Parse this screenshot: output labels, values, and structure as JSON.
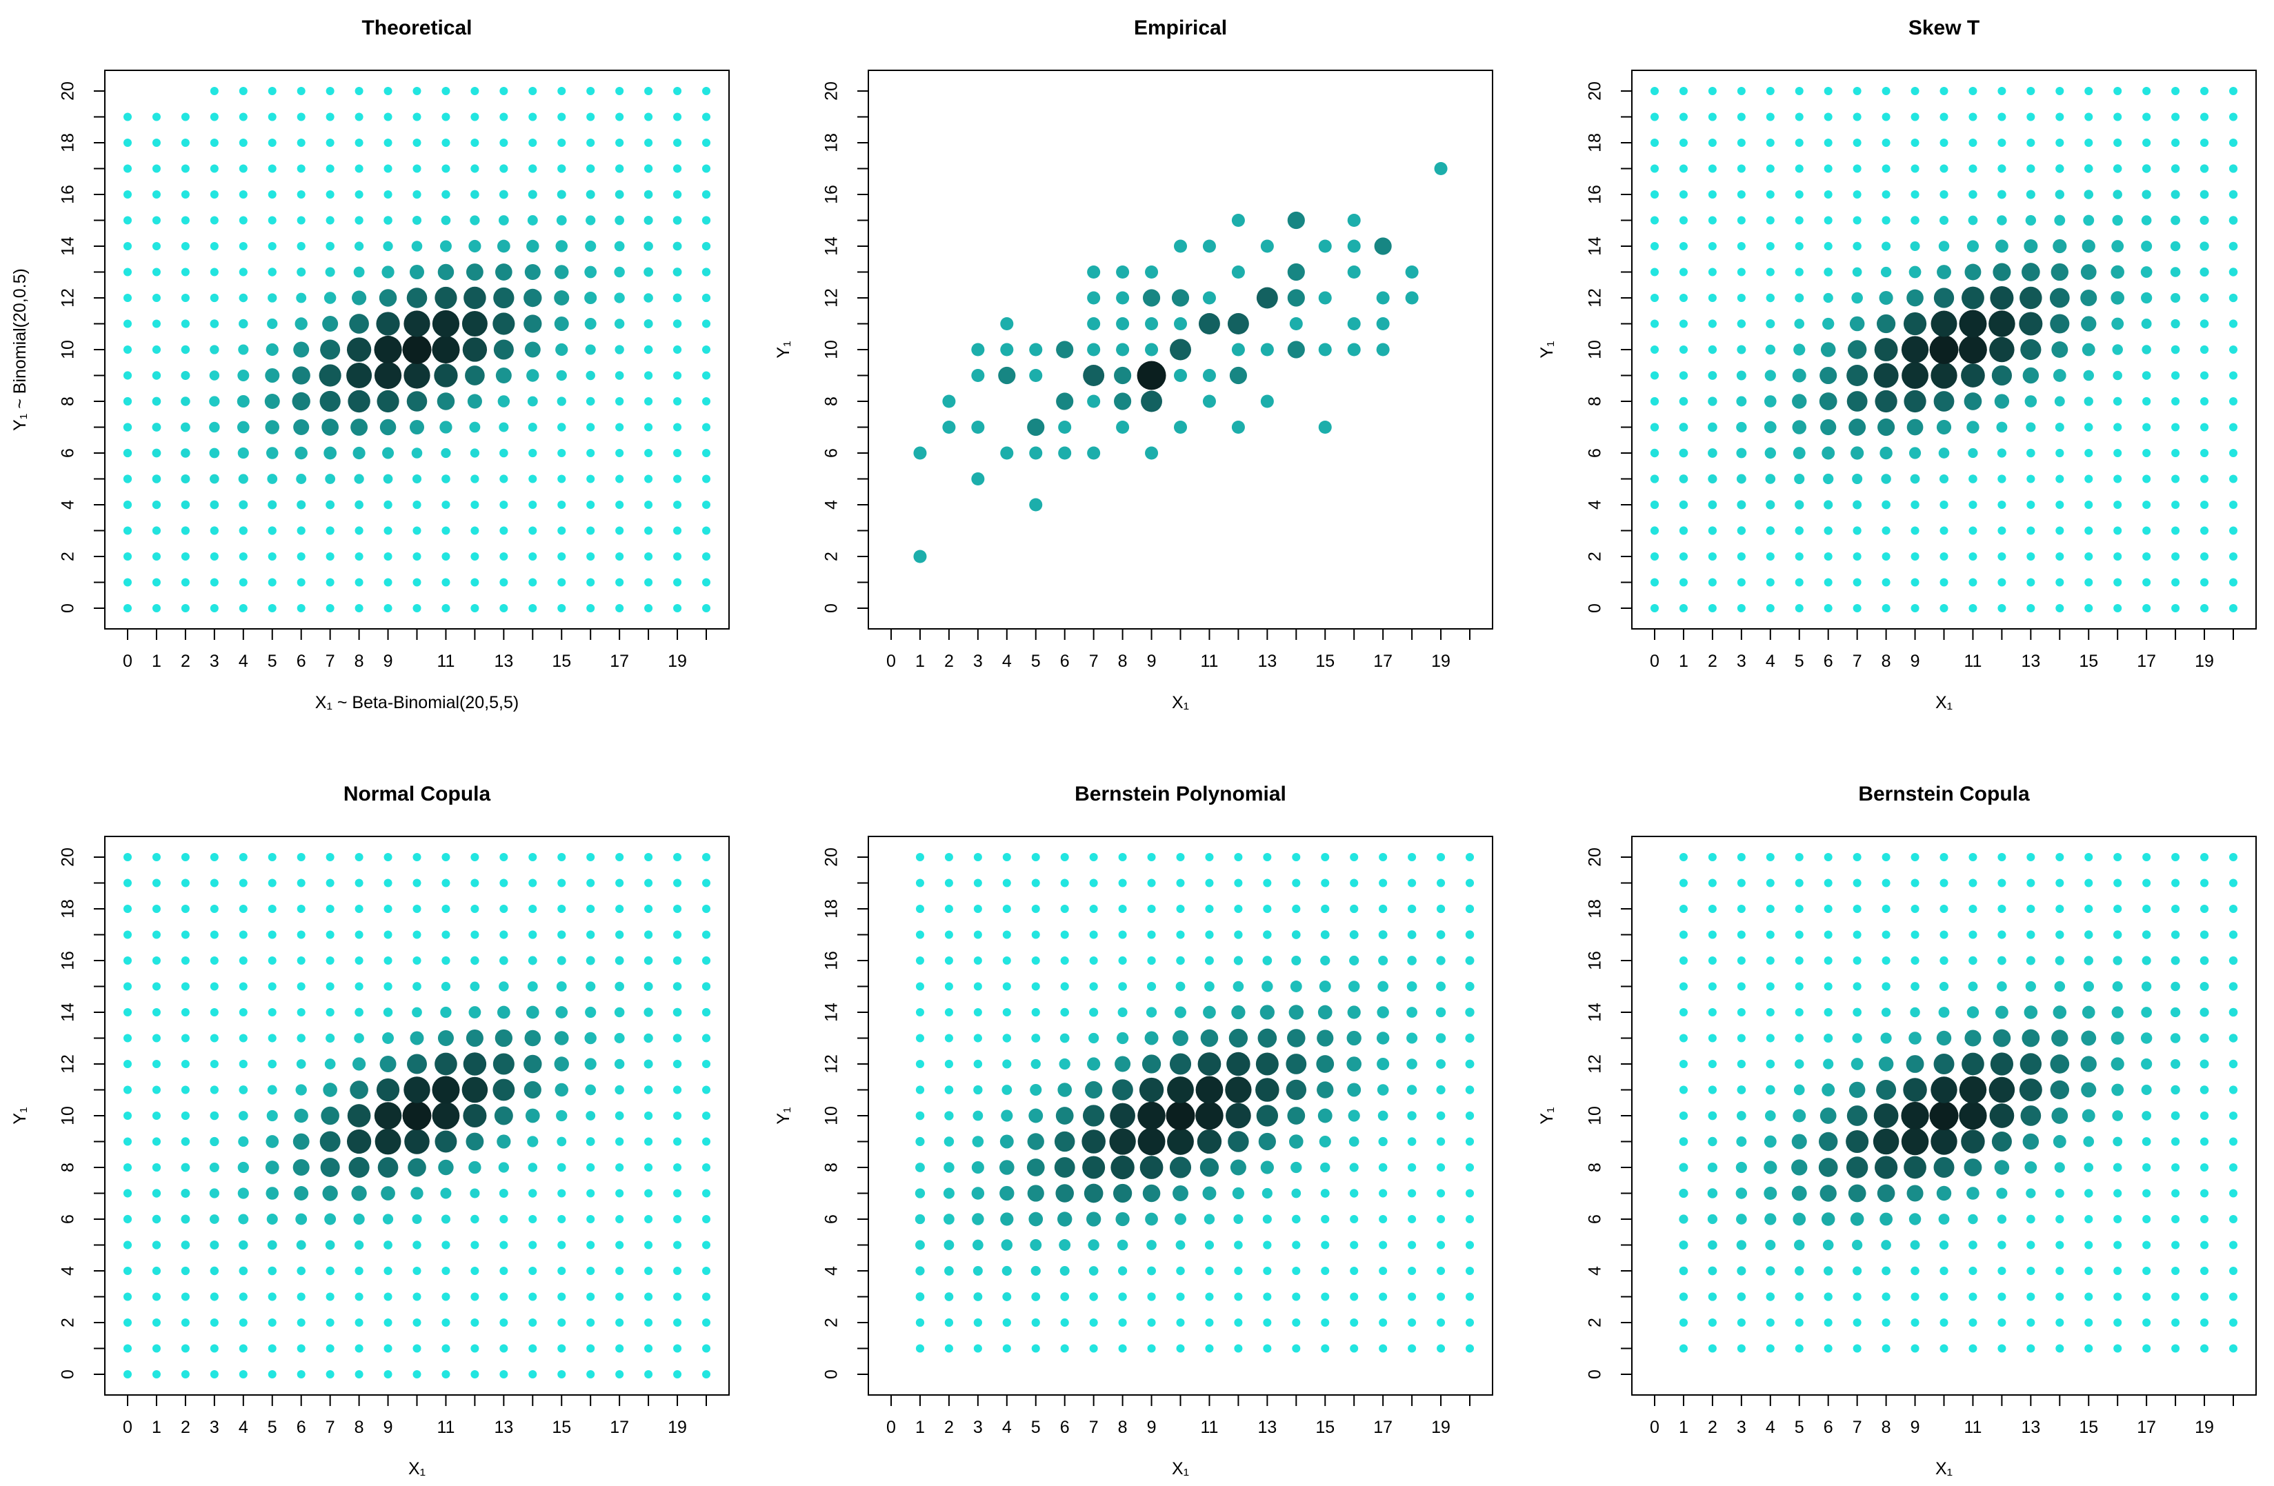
{
  "figure_title": "Six bivariate distribution panels",
  "colors": {
    "low": "#22e5e0",
    "high": "#0b1f1f"
  },
  "chart_data": [
    {
      "type": "scatter",
      "title": "Theoretical",
      "xlabel": "X₁ ~ Beta-Binomial(20,5,5)",
      "ylabel": "Y₁ ~ Binomial(20,0.5)",
      "xlim": [
        0,
        20
      ],
      "ylim": [
        0,
        20
      ],
      "xticks": [
        0,
        1,
        2,
        3,
        4,
        5,
        6,
        7,
        8,
        9,
        11,
        13,
        15,
        17,
        19
      ],
      "yticks": [
        0,
        2,
        4,
        6,
        8,
        10,
        12,
        14,
        16,
        18,
        20
      ],
      "model": {
        "kind": "gaussian",
        "mx": 10,
        "my": 10,
        "sx": 3.2,
        "sy": 2.2,
        "rho": 0.55,
        "slice": true
      }
    },
    {
      "type": "scatter",
      "title": "Empirical",
      "xlabel": "X₁",
      "ylabel": "Y₁",
      "xlim": [
        0,
        20
      ],
      "ylim": [
        0,
        20
      ],
      "xticks": [
        0,
        1,
        2,
        3,
        4,
        5,
        6,
        7,
        8,
        9,
        11,
        13,
        15,
        17,
        19
      ],
      "yticks": [
        0,
        2,
        4,
        6,
        8,
        10,
        12,
        14,
        16,
        18,
        20
      ],
      "points": [
        [
          1,
          2,
          1
        ],
        [
          1,
          6,
          1
        ],
        [
          2,
          7,
          1
        ],
        [
          2,
          8,
          1
        ],
        [
          3,
          5,
          1
        ],
        [
          3,
          7,
          1
        ],
        [
          3,
          9,
          1
        ],
        [
          3,
          10,
          1
        ],
        [
          4,
          6,
          1
        ],
        [
          4,
          9,
          2
        ],
        [
          4,
          10,
          1
        ],
        [
          4,
          11,
          1
        ],
        [
          5,
          4,
          1
        ],
        [
          5,
          6,
          1
        ],
        [
          5,
          7,
          2
        ],
        [
          5,
          9,
          1
        ],
        [
          5,
          10,
          1
        ],
        [
          6,
          6,
          1
        ],
        [
          6,
          7,
          1
        ],
        [
          6,
          8,
          2
        ],
        [
          6,
          10,
          2
        ],
        [
          7,
          6,
          1
        ],
        [
          7,
          8,
          1
        ],
        [
          7,
          9,
          3
        ],
        [
          7,
          10,
          1
        ],
        [
          7,
          11,
          1
        ],
        [
          7,
          12,
          1
        ],
        [
          7,
          13,
          1
        ],
        [
          8,
          7,
          1
        ],
        [
          8,
          8,
          2
        ],
        [
          8,
          9,
          2
        ],
        [
          8,
          10,
          1
        ],
        [
          8,
          11,
          1
        ],
        [
          8,
          12,
          1
        ],
        [
          8,
          13,
          1
        ],
        [
          9,
          6,
          1
        ],
        [
          9,
          8,
          3
        ],
        [
          9,
          9,
          5
        ],
        [
          9,
          10,
          1
        ],
        [
          9,
          11,
          1
        ],
        [
          9,
          12,
          2
        ],
        [
          9,
          13,
          1
        ],
        [
          10,
          7,
          1
        ],
        [
          10,
          9,
          1
        ],
        [
          10,
          10,
          3
        ],
        [
          10,
          11,
          1
        ],
        [
          10,
          12,
          2
        ],
        [
          10,
          14,
          1
        ],
        [
          11,
          8,
          1
        ],
        [
          11,
          9,
          1
        ],
        [
          11,
          11,
          3
        ],
        [
          11,
          12,
          1
        ],
        [
          11,
          14,
          1
        ],
        [
          12,
          7,
          1
        ],
        [
          12,
          9,
          2
        ],
        [
          12,
          10,
          1
        ],
        [
          12,
          11,
          3
        ],
        [
          12,
          13,
          1
        ],
        [
          12,
          15,
          1
        ],
        [
          13,
          8,
          1
        ],
        [
          13,
          10,
          1
        ],
        [
          13,
          12,
          3
        ],
        [
          13,
          14,
          1
        ],
        [
          14,
          10,
          2
        ],
        [
          14,
          11,
          1
        ],
        [
          14,
          12,
          2
        ],
        [
          14,
          13,
          2
        ],
        [
          14,
          15,
          2
        ],
        [
          15,
          7,
          1
        ],
        [
          15,
          10,
          1
        ],
        [
          15,
          12,
          1
        ],
        [
          15,
          14,
          1
        ],
        [
          16,
          10,
          1
        ],
        [
          16,
          11,
          1
        ],
        [
          16,
          13,
          1
        ],
        [
          16,
          14,
          1
        ],
        [
          16,
          15,
          1
        ],
        [
          17,
          10,
          1
        ],
        [
          17,
          11,
          1
        ],
        [
          17,
          12,
          1
        ],
        [
          17,
          14,
          2
        ],
        [
          18,
          12,
          1
        ],
        [
          18,
          13,
          1
        ],
        [
          19,
          17,
          1
        ]
      ]
    },
    {
      "type": "scatter",
      "title": "Skew T",
      "xlabel": "X₁",
      "ylabel": "Y₁",
      "xlim": [
        0,
        20
      ],
      "ylim": [
        0,
        20
      ],
      "xticks": [
        0,
        1,
        2,
        3,
        4,
        5,
        6,
        7,
        8,
        9,
        11,
        13,
        15,
        17,
        19
      ],
      "yticks": [
        0,
        2,
        4,
        6,
        8,
        10,
        12,
        14,
        16,
        18,
        20
      ],
      "model": {
        "kind": "gaussian",
        "mx": 10.3,
        "my": 10.1,
        "sx": 3.3,
        "sy": 2.3,
        "rho": 0.6,
        "slice": false
      }
    },
    {
      "type": "scatter",
      "title": "Normal Copula",
      "xlabel": "X₁",
      "ylabel": "Y₁",
      "xlim": [
        0,
        20
      ],
      "ylim": [
        0,
        20
      ],
      "xticks": [
        0,
        1,
        2,
        3,
        4,
        5,
        6,
        7,
        8,
        9,
        11,
        13,
        15,
        17,
        19
      ],
      "yticks": [
        0,
        2,
        4,
        6,
        8,
        10,
        12,
        14,
        16,
        18,
        20
      ],
      "model": {
        "kind": "gaussian",
        "mx": 10.2,
        "my": 10.2,
        "sx": 3.0,
        "sy": 2.1,
        "rho": 0.6,
        "slice": false
      }
    },
    {
      "type": "scatter",
      "title": "Bernstein Polynomial",
      "xlabel": "X₁",
      "ylabel": "Y₁",
      "xlim": [
        0,
        20
      ],
      "ylim": [
        0,
        20
      ],
      "xticks": [
        0,
        1,
        2,
        3,
        4,
        5,
        6,
        7,
        8,
        9,
        11,
        13,
        15,
        17,
        19
      ],
      "yticks": [
        0,
        2,
        4,
        6,
        8,
        10,
        12,
        14,
        16,
        18,
        20
      ],
      "model": {
        "kind": "gaussian",
        "mx": 10,
        "my": 10,
        "sx": 3.8,
        "sy": 2.5,
        "rho": 0.6,
        "slice": false,
        "xmin": 1,
        "ymin": 1
      }
    },
    {
      "type": "scatter",
      "title": "Bernstein Copula",
      "xlabel": "X₁",
      "ylabel": "Y₁",
      "xlim": [
        0,
        20
      ],
      "ylim": [
        0,
        20
      ],
      "xticks": [
        0,
        1,
        2,
        3,
        4,
        5,
        6,
        7,
        8,
        9,
        11,
        13,
        15,
        17,
        19
      ],
      "yticks": [
        0,
        2,
        4,
        6,
        8,
        10,
        12,
        14,
        16,
        18,
        20
      ],
      "model": {
        "kind": "gaussian",
        "mx": 10,
        "my": 10,
        "sx": 3.4,
        "sy": 2.3,
        "rho": 0.58,
        "slice": false,
        "xmin": 1,
        "ymin": 1
      }
    }
  ]
}
